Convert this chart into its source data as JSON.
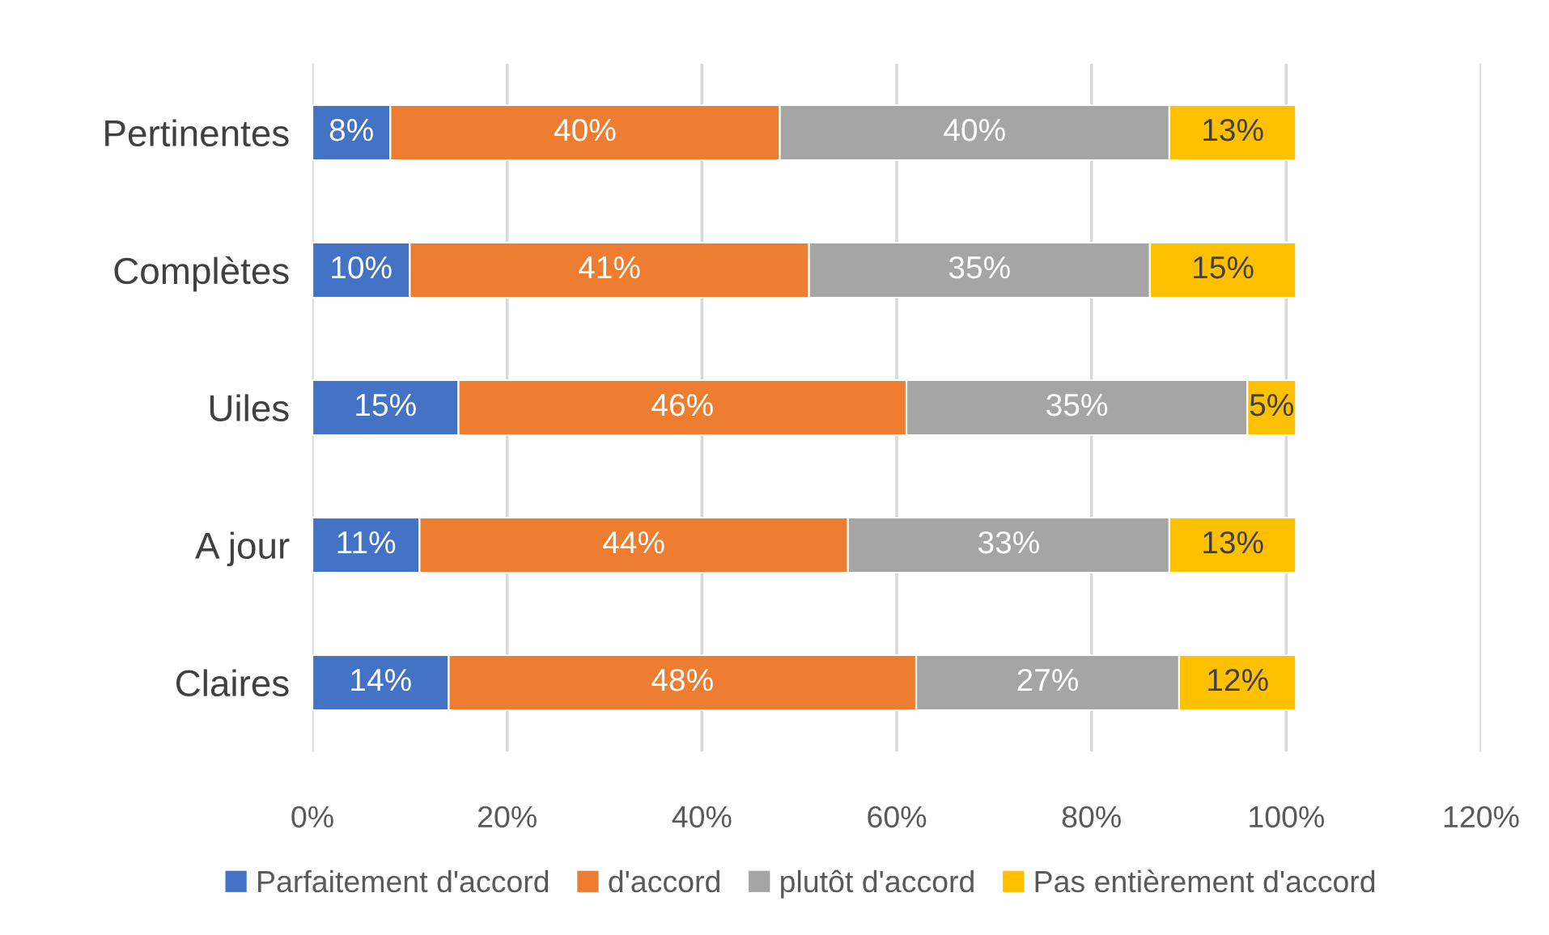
{
  "chart_data": {
    "type": "bar",
    "orientation": "horizontal",
    "stacked": true,
    "categories": [
      "Pertinentes",
      "Complètes",
      "Uiles",
      "A jour",
      "Claires"
    ],
    "series": [
      {
        "name": "Parfaitement d'accord",
        "color": "#4472c4",
        "values": [
          8,
          10,
          15,
          11,
          14
        ],
        "value_labels": [
          "8%",
          "10%",
          "15%",
          "11%",
          "14%"
        ]
      },
      {
        "name": "d'accord",
        "color": "#ed7d31",
        "values": [
          40,
          41,
          46,
          44,
          48
        ],
        "value_labels": [
          "40%",
          "41%",
          "46%",
          "44%",
          "48%"
        ]
      },
      {
        "name": "plutôt d'accord",
        "color": "#a5a5a5",
        "values": [
          40,
          35,
          35,
          33,
          27
        ],
        "value_labels": [
          "40%",
          "35%",
          "35%",
          "33%",
          "27%"
        ]
      },
      {
        "name": "Pas entièrement d'accord",
        "color": "#ffc000",
        "values": [
          13,
          15,
          5,
          13,
          12
        ],
        "value_labels": [
          "13%",
          "15%",
          "5%",
          "13%",
          "12%"
        ]
      }
    ],
    "xlim": [
      0,
      120
    ],
    "xticks": [
      {
        "value": 0,
        "label": "0%"
      },
      {
        "value": 20,
        "label": "20%"
      },
      {
        "value": 40,
        "label": "40%"
      },
      {
        "value": 60,
        "label": "60%"
      },
      {
        "value": 80,
        "label": "80%"
      },
      {
        "value": 100,
        "label": "100%"
      },
      {
        "value": 120,
        "label": "120%"
      }
    ],
    "grid": "x",
    "legend": "bottom"
  }
}
